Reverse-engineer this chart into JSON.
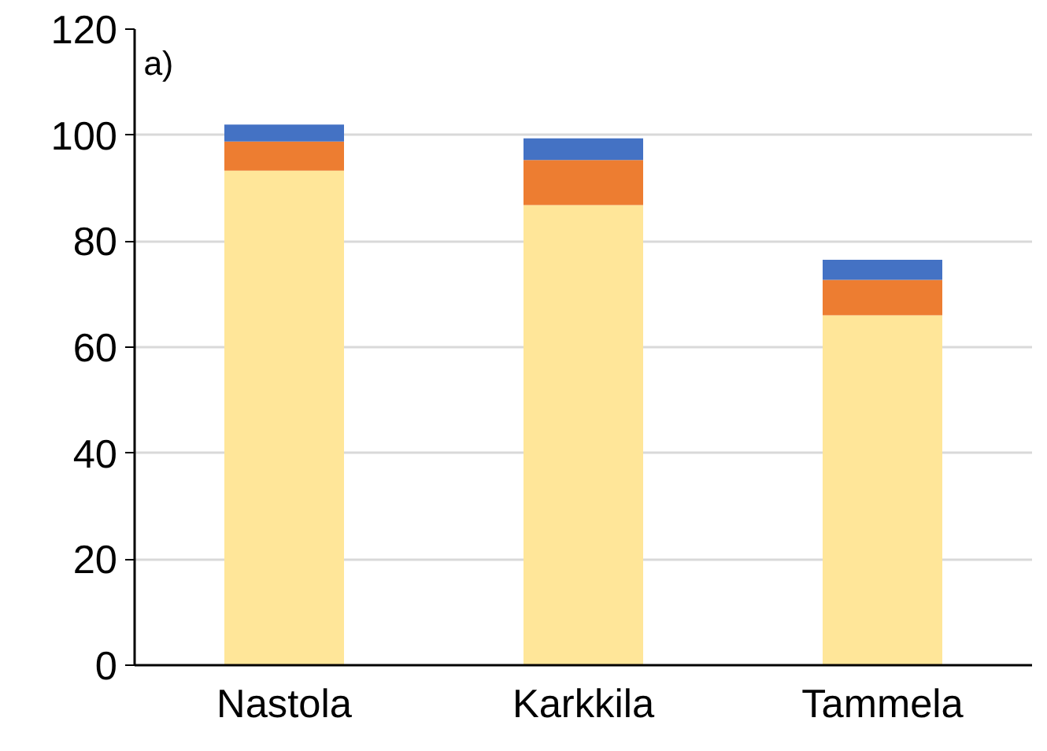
{
  "chart_data": {
    "type": "bar",
    "stacked": true,
    "categories": [
      "Nastola",
      "Karkkila",
      "Tammela"
    ],
    "series": [
      {
        "color": "#ffe699",
        "values": [
          93.3,
          86.8,
          66
        ]
      },
      {
        "color": "#ed7d31",
        "values": [
          5.5,
          8.5,
          6.7
        ]
      },
      {
        "color": "#4472c4",
        "values": [
          3.2,
          4.1,
          3.8
        ]
      }
    ],
    "ylim": [
      0,
      120
    ],
    "yticks": [
      0,
      20,
      40,
      60,
      80,
      100,
      120
    ],
    "grid": "y",
    "annotations": [
      "a)"
    ]
  }
}
